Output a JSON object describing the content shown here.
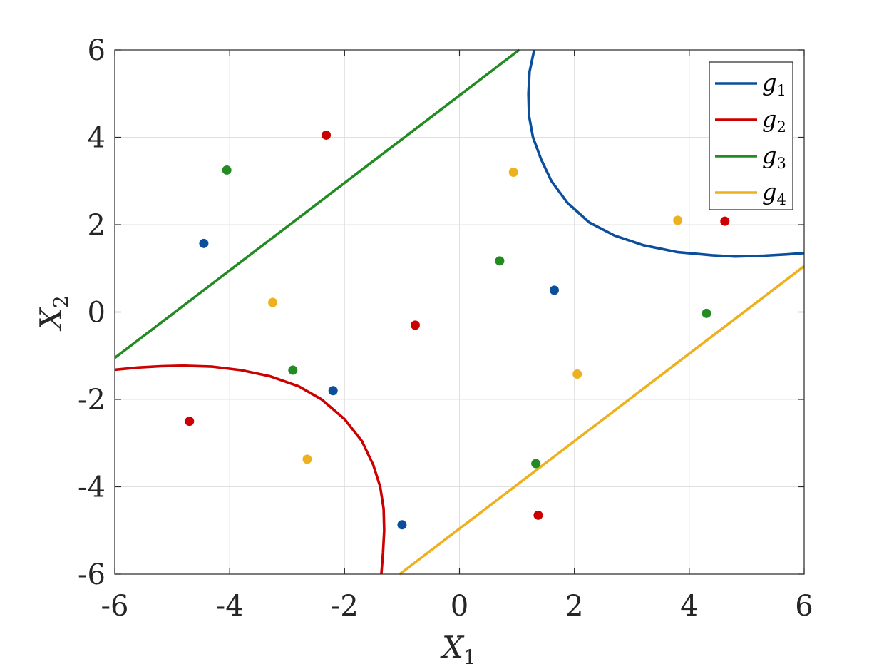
{
  "chart_data": {
    "type": "scatter",
    "xlabel": "X",
    "xlabel_sub": "1",
    "ylabel": "X",
    "ylabel_sub": "2",
    "xlim": [
      -6,
      6
    ],
    "ylim": [
      -6,
      6
    ],
    "xticks": [
      -6,
      -4,
      -2,
      0,
      2,
      4,
      6
    ],
    "yticks": [
      -6,
      -4,
      -2,
      0,
      2,
      4,
      6
    ],
    "xtick_labels": [
      "-6",
      "-4",
      "-2",
      "0",
      "2",
      "4",
      "6"
    ],
    "ytick_labels": [
      "-6",
      "-4",
      "-2",
      "0",
      "2",
      "4",
      "6"
    ],
    "grid": true,
    "legend_position": "top-right",
    "series": [
      {
        "name": "g",
        "sub": "1",
        "color": "#0b4f9c",
        "points": [
          [
            -4.45,
            1.57
          ],
          [
            -2.2,
            -1.8
          ],
          [
            -1.0,
            -4.87
          ],
          [
            1.65,
            0.5
          ]
        ],
        "curve": [
          [
            1.3,
            6.0
          ],
          [
            1.22,
            5.5
          ],
          [
            1.2,
            5.0
          ],
          [
            1.21,
            4.5
          ],
          [
            1.28,
            4.0
          ],
          [
            1.42,
            3.5
          ],
          [
            1.6,
            3.0
          ],
          [
            1.88,
            2.5
          ],
          [
            2.26,
            2.05
          ],
          [
            2.7,
            1.75
          ],
          [
            3.2,
            1.53
          ],
          [
            3.8,
            1.37
          ],
          [
            4.4,
            1.3
          ],
          [
            4.8,
            1.27
          ],
          [
            5.3,
            1.29
          ],
          [
            5.7,
            1.32
          ],
          [
            6.0,
            1.35
          ]
        ]
      },
      {
        "name": "g",
        "sub": "2",
        "color": "#cc0000",
        "points": [
          [
            -4.7,
            -2.5
          ],
          [
            -2.32,
            4.05
          ],
          [
            -0.77,
            -0.3
          ],
          [
            1.37,
            -4.65
          ],
          [
            4.62,
            2.08
          ]
        ],
        "curve": [
          [
            -6.0,
            -1.32
          ],
          [
            -5.6,
            -1.27
          ],
          [
            -5.2,
            -1.24
          ],
          [
            -4.8,
            -1.23
          ],
          [
            -4.3,
            -1.25
          ],
          [
            -3.8,
            -1.33
          ],
          [
            -3.3,
            -1.47
          ],
          [
            -2.8,
            -1.7
          ],
          [
            -2.4,
            -2.0
          ],
          [
            -2.0,
            -2.45
          ],
          [
            -1.7,
            -2.95
          ],
          [
            -1.5,
            -3.5
          ],
          [
            -1.38,
            -4.0
          ],
          [
            -1.32,
            -4.5
          ],
          [
            -1.31,
            -5.0
          ],
          [
            -1.33,
            -5.5
          ],
          [
            -1.36,
            -6.0
          ]
        ]
      },
      {
        "name": "g",
        "sub": "3",
        "color": "#228b22",
        "points": [
          [
            -4.05,
            3.25
          ],
          [
            -2.9,
            -1.33
          ],
          [
            0.7,
            1.17
          ],
          [
            1.33,
            -3.47
          ],
          [
            4.3,
            -0.03
          ]
        ],
        "curve": [
          [
            -6.0,
            -1.05
          ],
          [
            1.04,
            6.0
          ]
        ]
      },
      {
        "name": "g",
        "sub": "4",
        "color": "#edb120",
        "points": [
          [
            -3.25,
            0.22
          ],
          [
            -2.65,
            -3.37
          ],
          [
            0.94,
            3.2
          ],
          [
            2.05,
            -1.42
          ],
          [
            3.8,
            2.1
          ]
        ],
        "curve": [
          [
            -1.04,
            -6.0
          ],
          [
            6.0,
            1.05
          ]
        ]
      }
    ]
  }
}
